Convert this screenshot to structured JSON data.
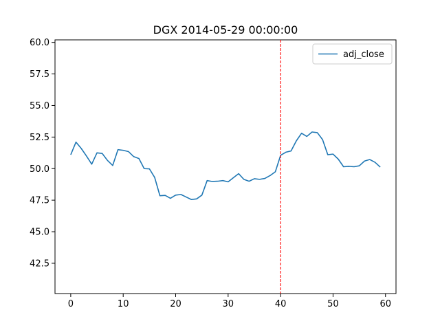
{
  "chart_data": {
    "type": "line",
    "title": "DGX 2014-05-29 00:00:00",
    "xlabel": "",
    "ylabel": "",
    "xlim": [
      -3,
      62
    ],
    "ylim": [
      40.1,
      60.2
    ],
    "x_ticks": [
      0,
      10,
      20,
      30,
      40,
      50,
      60
    ],
    "y_ticks": [
      42.5,
      45.0,
      47.5,
      50.0,
      52.5,
      55.0,
      57.5,
      60.0
    ],
    "x_tick_labels": [
      "0",
      "10",
      "20",
      "30",
      "40",
      "50",
      "60"
    ],
    "y_tick_labels": [
      "42.5",
      "45.0",
      "47.5",
      "50.0",
      "52.5",
      "55.0",
      "57.5",
      "60.0"
    ],
    "grid": false,
    "legend_position": "top-right",
    "series": [
      {
        "name": "adj_close",
        "color": "#1f77b4",
        "x": [
          0,
          1,
          2,
          3,
          4,
          5,
          6,
          7,
          8,
          9,
          10,
          11,
          12,
          13,
          14,
          15,
          16,
          17,
          18,
          19,
          20,
          21,
          22,
          23,
          24,
          25,
          26,
          27,
          28,
          29,
          30,
          31,
          32,
          33,
          34,
          35,
          36,
          37,
          38,
          39,
          40,
          41,
          42,
          43,
          44,
          45,
          46,
          47,
          48,
          49,
          50,
          51,
          52,
          53,
          54,
          55,
          56,
          57,
          58,
          59
        ],
        "values": [
          51.1,
          52.1,
          51.6,
          51.0,
          50.35,
          51.25,
          51.2,
          50.65,
          50.25,
          51.5,
          51.45,
          51.35,
          50.95,
          50.8,
          50.0,
          49.98,
          49.3,
          47.85,
          47.88,
          47.65,
          47.9,
          47.95,
          47.75,
          47.55,
          47.6,
          47.9,
          49.05,
          48.98,
          49.0,
          49.05,
          48.95,
          49.28,
          49.6,
          49.15,
          49.0,
          49.2,
          49.15,
          49.22,
          49.45,
          49.75,
          51.05,
          51.3,
          51.4,
          52.2,
          52.8,
          52.55,
          52.9,
          52.85,
          52.3,
          51.1,
          51.15,
          50.75,
          50.15,
          50.18,
          50.15,
          50.22,
          50.6,
          50.72,
          50.5,
          50.12
        ]
      }
    ],
    "annotations": [
      {
        "type": "vline",
        "x": 40,
        "color": "#ff0000",
        "style": "dashed"
      }
    ]
  }
}
